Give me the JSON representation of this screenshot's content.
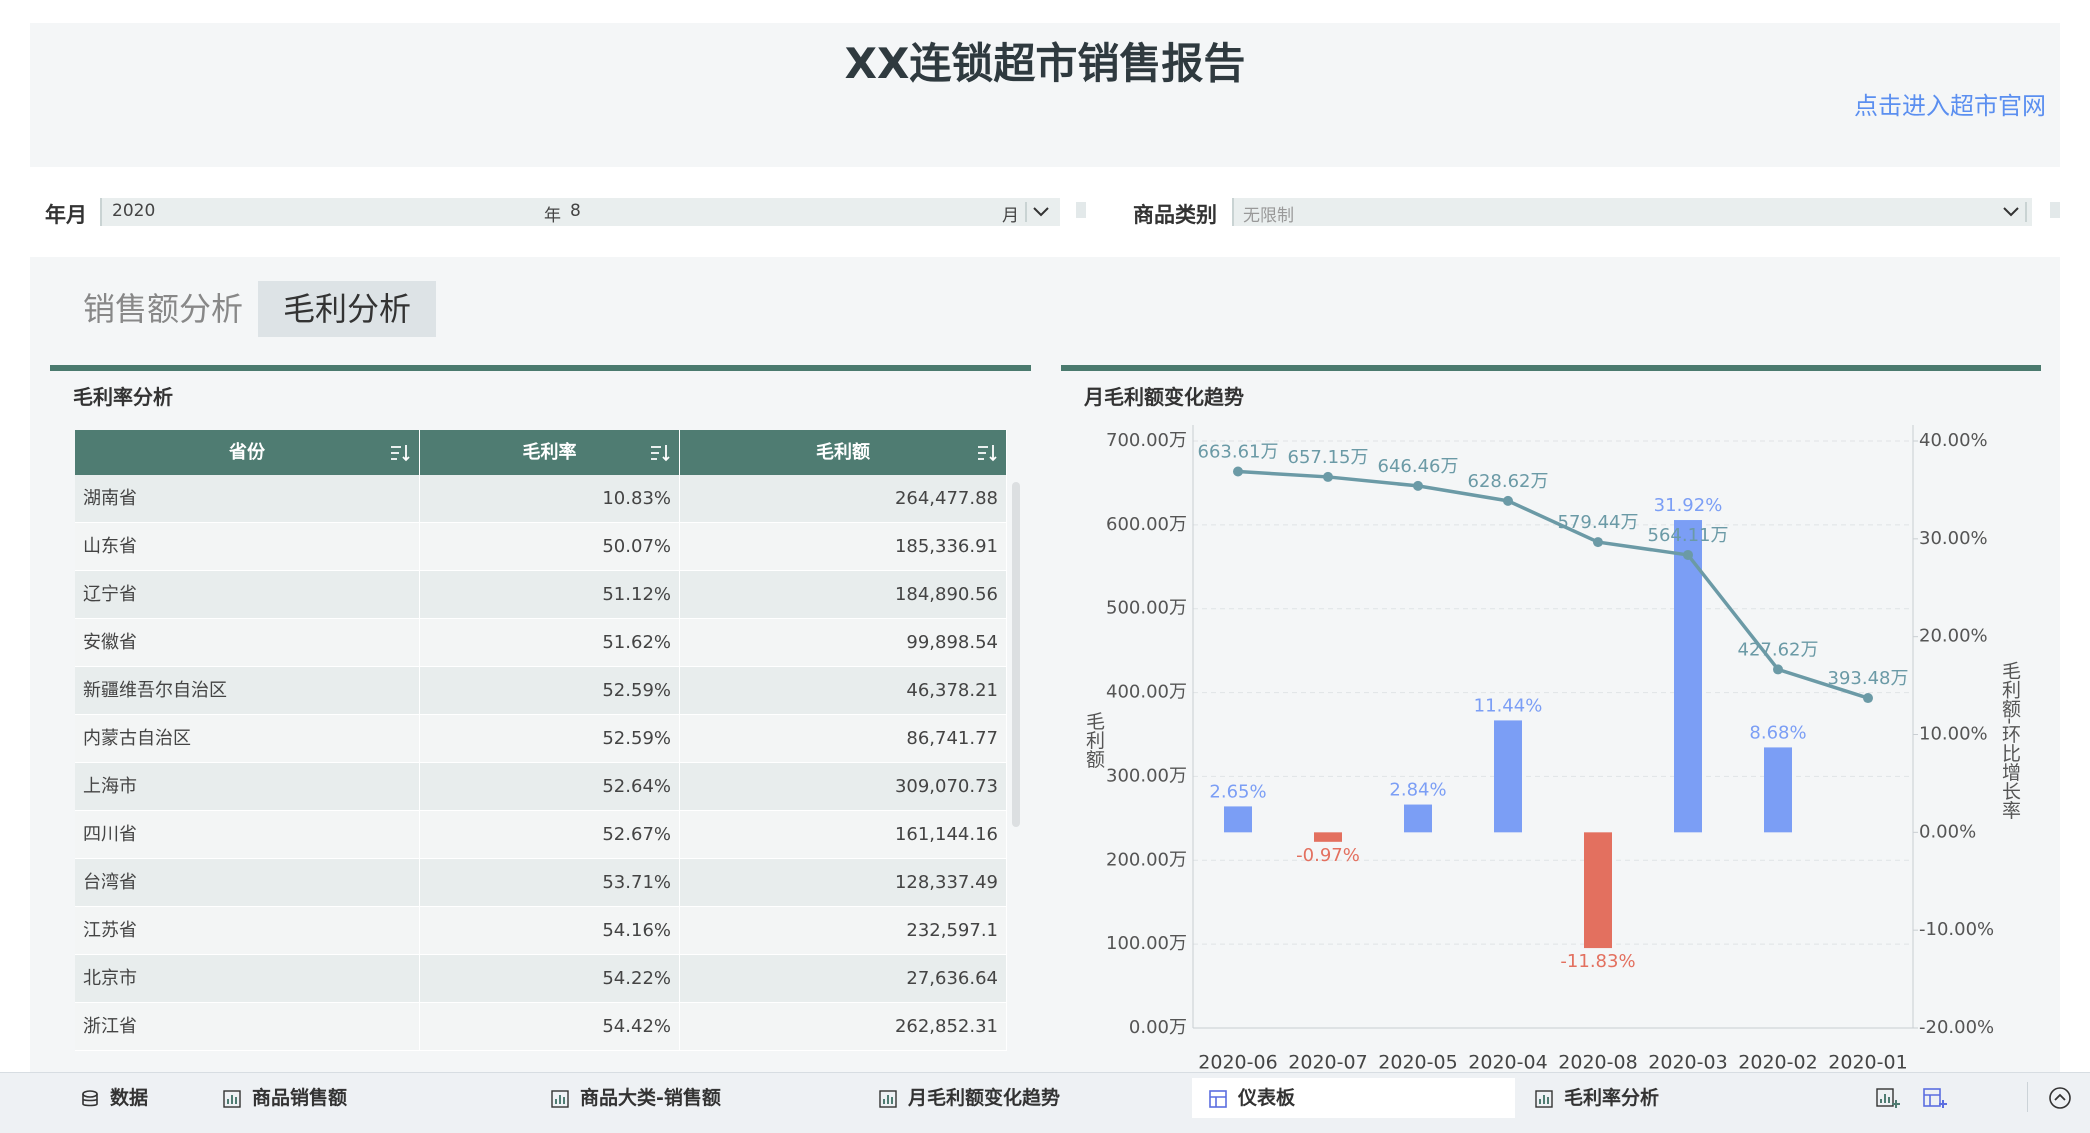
{
  "header": {
    "title": "XX连锁超市销售报告",
    "link": "点击进入超市官网"
  },
  "filters": {
    "year_month": {
      "label": "年月",
      "year": "2020",
      "year_unit": "年",
      "month": "8",
      "month_unit": "月"
    },
    "category": {
      "label": "商品类别",
      "value": "无限制"
    }
  },
  "tabs": [
    {
      "label": "销售额分析",
      "active": false
    },
    {
      "label": "毛利分析",
      "active": true
    }
  ],
  "table": {
    "title": "毛利率分析",
    "columns": [
      "省份",
      "毛利率",
      "毛利额"
    ],
    "rows": [
      [
        "湖南省",
        "10.83%",
        "264,477.88"
      ],
      [
        "山东省",
        "50.07%",
        "185,336.91"
      ],
      [
        "辽宁省",
        "51.12%",
        "184,890.56"
      ],
      [
        "安徽省",
        "51.62%",
        "99,898.54"
      ],
      [
        "新疆维吾尔自治区",
        "52.59%",
        "46,378.21"
      ],
      [
        "内蒙古自治区",
        "52.59%",
        "86,741.77"
      ],
      [
        "上海市",
        "52.64%",
        "309,070.73"
      ],
      [
        "四川省",
        "52.67%",
        "161,144.16"
      ],
      [
        "台湾省",
        "53.71%",
        "128,337.49"
      ],
      [
        "江苏省",
        "54.16%",
        "232,597.1"
      ],
      [
        "北京市",
        "54.22%",
        "27,636.64"
      ],
      [
        "浙江省",
        "54.42%",
        "262,852.31"
      ]
    ]
  },
  "chart_data": {
    "type": "bar_line",
    "title": "月毛利额变化趋势",
    "categories": [
      "2020-06",
      "2020-07",
      "2020-05",
      "2020-04",
      "2020-08",
      "2020-03",
      "2020-02",
      "2020-01"
    ],
    "series": [
      {
        "type": "bar",
        "axis": "y2",
        "color": "#7b9ef5",
        "negative_color": "#e3705f",
        "values": [
          2.65,
          -0.97,
          2.84,
          11.44,
          -11.83,
          31.92,
          8.68,
          null
        ],
        "value_labels": [
          "2.65%",
          "-0.97%",
          "2.84%",
          "11.44%",
          "-11.83%",
          "31.92%",
          "8.68%",
          null
        ]
      },
      {
        "type": "line",
        "color": "#6b9aa6",
        "values": [
          663.61,
          657.15,
          646.46,
          628.62,
          579.44,
          564.11,
          427.62,
          393.48
        ],
        "value_labels": [
          "663.61万",
          "657.15万",
          "646.46万",
          "628.62万",
          "579.44万",
          "564.11万",
          "427.62万",
          "393.48万"
        ]
      }
    ],
    "ylabel": "毛利额",
    "y2label": "毛利额-环比增长率",
    "ylim": [
      0,
      700
    ],
    "yticks": [
      {
        "value": 0,
        "label": "0.00万"
      },
      {
        "value": 100,
        "label": "100.00万"
      },
      {
        "value": 200,
        "label": "200.00万"
      },
      {
        "value": 300,
        "label": "300.00万"
      },
      {
        "value": 400,
        "label": "400.00万"
      },
      {
        "value": 500,
        "label": "500.00万"
      },
      {
        "value": 600,
        "label": "600.00万"
      },
      {
        "value": 700,
        "label": "700.00万"
      }
    ],
    "y2lim": [
      -20,
      40
    ],
    "y2ticks": [
      {
        "value": -20,
        "label": "-20.00%"
      },
      {
        "value": -10,
        "label": "-10.00%"
      },
      {
        "value": 0,
        "label": "0.00%"
      },
      {
        "value": 10,
        "label": "10.00%"
      },
      {
        "value": 20,
        "label": "20.00%"
      },
      {
        "value": 30,
        "label": "30.00%"
      },
      {
        "value": 40,
        "label": "40.00%"
      }
    ],
    "grid": true
  },
  "footer_tabs": [
    {
      "label": "数据",
      "active": false
    },
    {
      "label": "商品销售额",
      "active": false
    },
    {
      "label": "商品大类-销售额",
      "active": false
    },
    {
      "label": "月毛利额变化趋势",
      "active": false
    },
    {
      "label": "仪表板",
      "active": true
    },
    {
      "label": "毛利率分析",
      "active": false
    }
  ]
}
